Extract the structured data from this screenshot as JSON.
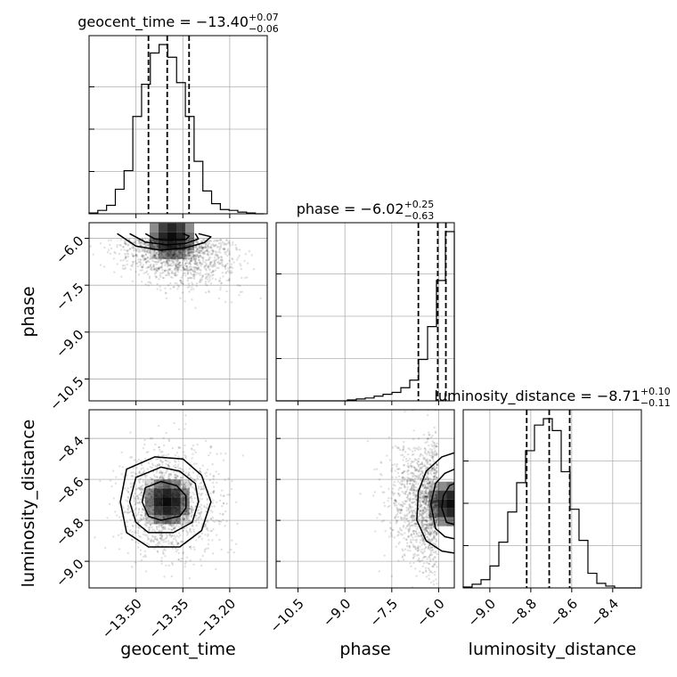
{
  "chart_data": {
    "type": "corner",
    "parameters": [
      {
        "name": "geocent_time",
        "xlabel": "geocent_time",
        "title": {
          "main": "geocent_time = −13.40",
          "sup": "+0.07",
          "sub": "−0.06"
        },
        "range": [
          -13.65,
          -13.08
        ],
        "ticks": [
          -13.5,
          -13.35,
          -13.2
        ],
        "tick_labels": [
          "−13.50",
          "−13.35",
          "−13.20"
        ],
        "quantiles": [
          -13.46,
          -13.4,
          -13.33
        ],
        "histogram": {
          "edges": [
            -13.65,
            -13.622,
            -13.594,
            -13.566,
            -13.538,
            -13.51,
            -13.482,
            -13.454,
            -13.426,
            -13.398,
            -13.37,
            -13.342,
            -13.314,
            -13.286,
            -13.258,
            -13.23,
            -13.202,
            -13.174,
            -13.146,
            -13.118,
            -13.09
          ],
          "counts": [
            1,
            4,
            10,
            29,
            51,
            115,
            153,
            190,
            200,
            185,
            155,
            115,
            62,
            27,
            12,
            5,
            4,
            2,
            1,
            0
          ]
        }
      },
      {
        "name": "phase",
        "xlabel": "phase",
        "ylabel": "phase",
        "title": {
          "main": "phase = −6.02",
          "sup": "+0.25",
          "sub": "−0.63"
        },
        "range": [
          -11.2,
          -5.5
        ],
        "ticks": [
          -10.5,
          -9.0,
          -7.5,
          -6.0
        ],
        "tick_labels": [
          "−10.5",
          "−9.0",
          "−7.5",
          "−6.0"
        ],
        "quantiles": [
          -6.65,
          -6.03,
          -5.77
        ],
        "histogram": {
          "edges": [
            -11.2,
            -10.915,
            -10.63,
            -10.345,
            -10.06,
            -9.775,
            -9.49,
            -9.205,
            -8.92,
            -8.635,
            -8.35,
            -8.065,
            -7.78,
            -7.495,
            -7.21,
            -6.925,
            -6.64,
            -6.355,
            -6.07,
            -5.785,
            -5.5
          ],
          "counts": [
            0,
            0,
            0,
            0,
            0,
            0,
            0,
            0,
            1,
            2,
            3,
            5,
            7,
            9,
            14,
            22,
            44,
            79,
            128,
            180
          ]
        }
      },
      {
        "name": "luminosity_distance",
        "xlabel": "luminosity_distance",
        "ylabel": "luminosity_distance",
        "title": {
          "main": "luminosity_distance = −8.71",
          "sup": "+0.10",
          "sub": "−0.11"
        },
        "range": [
          -9.13,
          -8.26
        ],
        "ticks": [
          -9.0,
          -8.8,
          -8.6,
          -8.4
        ],
        "tick_labels": [
          "−9.0",
          "−8.8",
          "−8.6",
          "−8.4"
        ],
        "quantiles": [
          -8.82,
          -8.71,
          -8.61
        ],
        "histogram": {
          "edges": [
            -9.13,
            -9.0865,
            -9.043,
            -8.9995,
            -8.956,
            -8.9125,
            -8.869,
            -8.8255,
            -8.782,
            -8.7385,
            -8.695,
            -8.6515,
            -8.608,
            -8.5645,
            -8.521,
            -8.4775,
            -8.434,
            -8.3905,
            -8.347,
            -8.3035,
            -8.26
          ],
          "counts": [
            1,
            4,
            9,
            24,
            50,
            83,
            115,
            150,
            178,
            185,
            172,
            127,
            86,
            52,
            16,
            5,
            2,
            0,
            0,
            0
          ]
        }
      }
    ],
    "pairs": [
      {
        "x": "geocent_time",
        "y": "phase",
        "peak": [
          -13.385,
          -5.95
        ],
        "contours": [
          [
            [
              -13.56,
              -5.85
            ],
            [
              -13.5,
              -6.25
            ],
            [
              -13.42,
              -6.38
            ],
            [
              -13.34,
              -6.3
            ],
            [
              -13.28,
              -6.13
            ],
            [
              -13.26,
              -5.95
            ],
            [
              -13.3,
              -5.85
            ]
          ],
          [
            [
              -13.52,
              -5.85
            ],
            [
              -13.47,
              -6.12
            ],
            [
              -13.4,
              -6.21
            ],
            [
              -13.34,
              -6.16
            ],
            [
              -13.3,
              -6.02
            ],
            [
              -13.31,
              -5.85
            ]
          ],
          [
            [
              -13.47,
              -5.85
            ],
            [
              -13.44,
              -6.02
            ],
            [
              -13.39,
              -6.07
            ],
            [
              -13.34,
              -6.04
            ],
            [
              -13.33,
              -5.93
            ],
            [
              -13.35,
              -5.85
            ]
          ]
        ]
      },
      {
        "x": "geocent_time",
        "y": "luminosity_distance",
        "peak": [
          -13.4,
          -8.71
        ],
        "contours": [
          [
            [
              -13.55,
              -8.71
            ],
            [
              -13.53,
              -8.55
            ],
            [
              -13.44,
              -8.49
            ],
            [
              -13.35,
              -8.5
            ],
            [
              -13.29,
              -8.58
            ],
            [
              -13.26,
              -8.71
            ],
            [
              -13.29,
              -8.85
            ],
            [
              -13.36,
              -8.93
            ],
            [
              -13.46,
              -8.93
            ],
            [
              -13.53,
              -8.86
            ]
          ],
          [
            [
              -13.52,
              -8.71
            ],
            [
              -13.5,
              -8.59
            ],
            [
              -13.42,
              -8.54
            ],
            [
              -13.36,
              -8.56
            ],
            [
              -13.31,
              -8.62
            ],
            [
              -13.3,
              -8.71
            ],
            [
              -13.32,
              -8.81
            ],
            [
              -13.38,
              -8.86
            ],
            [
              -13.46,
              -8.86
            ],
            [
              -13.5,
              -8.81
            ]
          ],
          [
            [
              -13.48,
              -8.71
            ],
            [
              -13.47,
              -8.64
            ],
            [
              -13.42,
              -8.61
            ],
            [
              -13.37,
              -8.63
            ],
            [
              -13.34,
              -8.68
            ],
            [
              -13.34,
              -8.74
            ],
            [
              -13.36,
              -8.78
            ],
            [
              -13.42,
              -8.8
            ],
            [
              -13.46,
              -8.78
            ]
          ]
        ]
      },
      {
        "x": "phase",
        "y": "luminosity_distance",
        "peak": [
          -5.6,
          -8.72
        ],
        "contours": [
          [
            [
              -5.5,
              -8.47
            ],
            [
              -5.9,
              -8.49
            ],
            [
              -6.4,
              -8.56
            ],
            [
              -6.65,
              -8.66
            ],
            [
              -6.7,
              -8.8
            ],
            [
              -6.4,
              -8.9
            ],
            [
              -5.9,
              -8.95
            ],
            [
              -5.5,
              -8.96
            ]
          ],
          [
            [
              -5.5,
              -8.55
            ],
            [
              -5.8,
              -8.57
            ],
            [
              -6.1,
              -8.62
            ],
            [
              -6.25,
              -8.72
            ],
            [
              -6.1,
              -8.84
            ],
            [
              -5.8,
              -8.88
            ],
            [
              -5.5,
              -8.89
            ]
          ],
          [
            [
              -5.5,
              -8.62
            ],
            [
              -5.65,
              -8.63
            ],
            [
              -5.85,
              -8.68
            ],
            [
              -5.9,
              -8.74
            ],
            [
              -5.75,
              -8.81
            ],
            [
              -5.5,
              -8.82
            ]
          ]
        ]
      }
    ]
  }
}
